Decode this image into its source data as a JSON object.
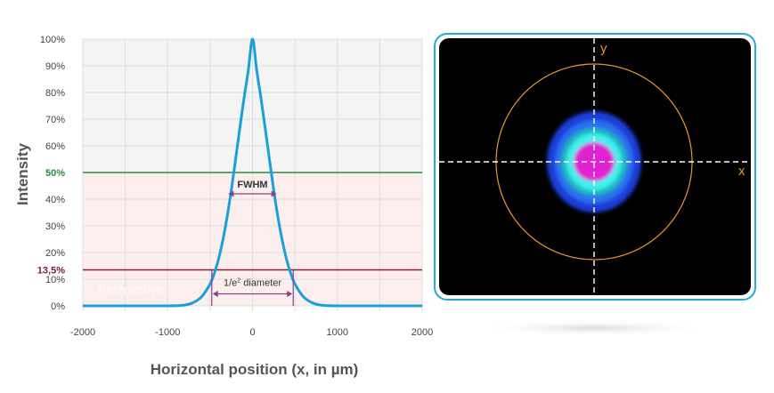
{
  "chart_data": {
    "type": "line",
    "xlabel": "Horizontal position (x, in µm)",
    "ylabel": "Intensity",
    "xlim": [
      -2000,
      2000
    ],
    "ylim": [
      0,
      100
    ],
    "x_ticks": [
      -2000,
      -1000,
      0,
      1000,
      2000
    ],
    "y_ticks": [
      0,
      10,
      20,
      30,
      40,
      50,
      60,
      70,
      80,
      90,
      100
    ],
    "y_tick_labels": [
      "0%",
      "10%",
      "20%",
      "30%",
      "40%",
      "50%",
      "60%",
      "70%",
      "80%",
      "90%",
      "100%"
    ],
    "grid": true,
    "series": [
      {
        "color": "#1aa0d8",
        "x": [
          -2000,
          -1500,
          -1000,
          -800,
          -700,
          -600,
          -500,
          -450,
          -400,
          -350,
          -300,
          -250,
          -200,
          -150,
          -100,
          -50,
          0,
          50,
          100,
          150,
          200,
          250,
          300,
          350,
          400,
          450,
          500,
          600,
          700,
          800,
          1000,
          1500,
          2000
        ],
        "y": [
          0,
          0,
          0,
          0.3,
          1.2,
          3.4,
          8.2,
          12.2,
          17.6,
          24.6,
          33.2,
          43.4,
          54.8,
          66.5,
          77.8,
          88.2,
          100,
          88.2,
          77.8,
          66.5,
          54.8,
          43.4,
          33.2,
          24.6,
          17.6,
          12.2,
          8.2,
          3.4,
          1.2,
          0.3,
          0,
          0,
          0
        ]
      }
    ],
    "reference_lines": [
      {
        "y": 50,
        "label": "50%",
        "color": "#2e8b3a"
      },
      {
        "y": 13.5,
        "label": "13,5%",
        "color": "#8b1a3e"
      }
    ],
    "annotations": [
      {
        "label": "FWHM",
        "y": 42,
        "x_from": -300,
        "x_to": 300
      },
      {
        "label_main": "1/e",
        "label_sup": "2",
        "label_rest": " diameter",
        "y": 4.5,
        "x_from": -480,
        "x_to": 480
      }
    ],
    "watermark": "Perspective"
  },
  "beam_profile": {
    "x_axis_label": "x",
    "y_axis_label": "y",
    "colors": {
      "background": "#000000",
      "frame": "#2aa8d8",
      "circle": "#e8962a",
      "ring_outer": "#1a3cd8",
      "ring_mid": "#2a70f0",
      "ring_teal": "#1ab8b8",
      "ring_cyan": "#40f0f0",
      "core": "#e020d0"
    }
  }
}
